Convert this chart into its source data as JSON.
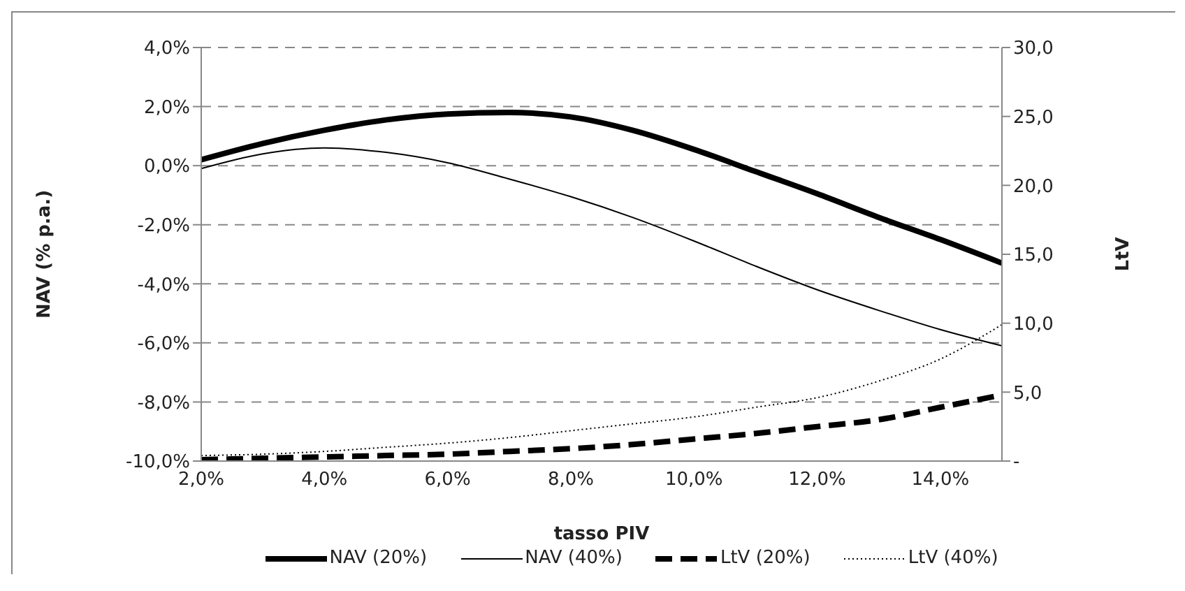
{
  "chart_data": {
    "type": "line",
    "xlabel": "tasso PIV",
    "ylabel": "NAV (% p.a.)",
    "y2label": "LtV",
    "x": [
      2,
      3,
      4,
      5,
      6,
      7,
      8,
      9,
      10,
      11,
      12,
      13,
      14,
      15
    ],
    "series": [
      {
        "name": "NAV (20%)",
        "color": "#000000",
        "line_style": "solid",
        "values": [
          0.2,
          0.75,
          1.2,
          1.55,
          1.75,
          1.8,
          1.65,
          1.2,
          0.55,
          -0.2,
          -0.95,
          -1.75,
          -2.5,
          -3.3
        ]
      },
      {
        "name": "NAV (40%)",
        "color": "#000000",
        "line_style": "solid",
        "values": [
          -0.1,
          0.4,
          0.6,
          0.45,
          0.1,
          -0.45,
          -1.05,
          -1.75,
          -2.55,
          -3.4,
          -4.2,
          -4.9,
          -5.55,
          -6.1
        ]
      },
      {
        "name": "LtV (20%)",
        "color": "#000000",
        "line_style": "dashed",
        "axis": "y2",
        "values": [
          0.1,
          0.2,
          0.3,
          0.4,
          0.5,
          0.7,
          0.9,
          1.2,
          1.6,
          2.0,
          2.5,
          3.0,
          3.9,
          4.8
        ]
      },
      {
        "name": "LtV (40%)",
        "color": "#000000",
        "line_style": "dotted",
        "axis": "y2",
        "values": [
          0.4,
          0.5,
          0.7,
          1.0,
          1.3,
          1.7,
          2.2,
          2.7,
          3.2,
          3.9,
          4.6,
          5.8,
          7.4,
          9.9
        ]
      }
    ],
    "xlim": [
      2,
      15
    ],
    "xticks": [
      {
        "value": 2,
        "label": "2,0%"
      },
      {
        "value": 4,
        "label": "4,0%"
      },
      {
        "value": 6,
        "label": "6,0%"
      },
      {
        "value": 8,
        "label": "8,0%"
      },
      {
        "value": 10,
        "label": "10,0%"
      },
      {
        "value": 12,
        "label": "12,0%"
      },
      {
        "value": 14,
        "label": "14,0%"
      }
    ],
    "ylim": [
      -10,
      4
    ],
    "yticks": [
      {
        "value": -10,
        "label": "-10,0%"
      },
      {
        "value": -8,
        "label": "-8,0%"
      },
      {
        "value": -6,
        "label": "-6,0%"
      },
      {
        "value": -4,
        "label": "-4,0%"
      },
      {
        "value": -2,
        "label": "-2,0%"
      },
      {
        "value": 0,
        "label": "0,0%"
      },
      {
        "value": 2,
        "label": "2,0%"
      },
      {
        "value": 4,
        "label": "4,0%"
      }
    ],
    "y2lim": [
      0,
      30
    ],
    "y2ticks": [
      {
        "value": 0,
        "label": "-"
      },
      {
        "value": 5,
        "label": "5,0"
      },
      {
        "value": 10,
        "label": "10,0"
      },
      {
        "value": 15,
        "label": "15,0"
      },
      {
        "value": 20,
        "label": "20,0"
      },
      {
        "value": 25,
        "label": "25,0"
      },
      {
        "value": 30,
        "label": "30,0"
      }
    ],
    "grid": "y",
    "legend": "bottom",
    "marker": "none"
  }
}
